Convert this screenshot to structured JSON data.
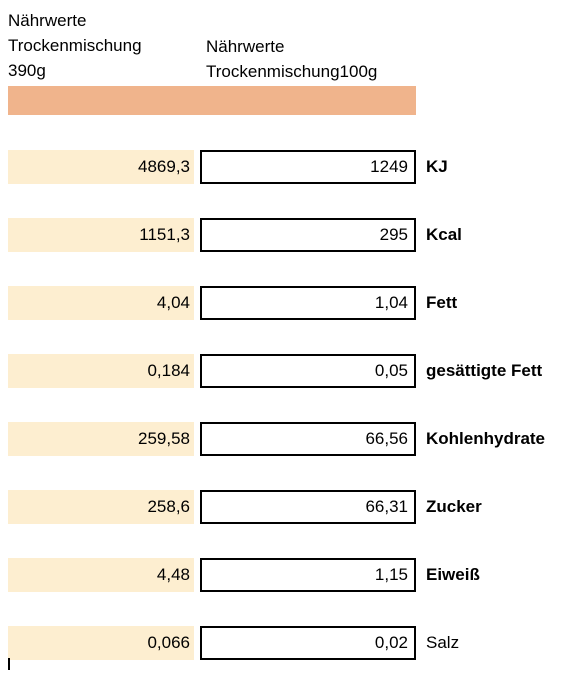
{
  "header": {
    "col_a": [
      "Nährwerte",
      "Trockenmischung",
      "390g"
    ],
    "col_b": [
      "Nährwerte",
      "Trockenmischung100g"
    ],
    "band_color": "#f0b48c"
  },
  "rows": [
    {
      "a": "4869,3",
      "b": "1249",
      "unit": "KJ",
      "bold": true
    },
    {
      "a": "1151,3",
      "b": "295",
      "unit": "Kcal",
      "bold": true
    },
    {
      "a": "4,04",
      "b": "1,04",
      "unit": "Fett",
      "bold": true
    },
    {
      "a": "0,184",
      "b": "0,05",
      "unit": "gesättigte Fett",
      "bold": true
    },
    {
      "a": "259,58",
      "b": "66,56",
      "unit": "Kohlenhydrate",
      "bold": true
    },
    {
      "a": "258,6",
      "b": "66,31",
      "unit": "Zucker",
      "bold": true
    },
    {
      "a": "4,48",
      "b": "1,15",
      "unit": "Eiweiß",
      "bold": true
    },
    {
      "a": "0,066",
      "b": "0,02",
      "unit": "Salz",
      "bold": false
    }
  ]
}
